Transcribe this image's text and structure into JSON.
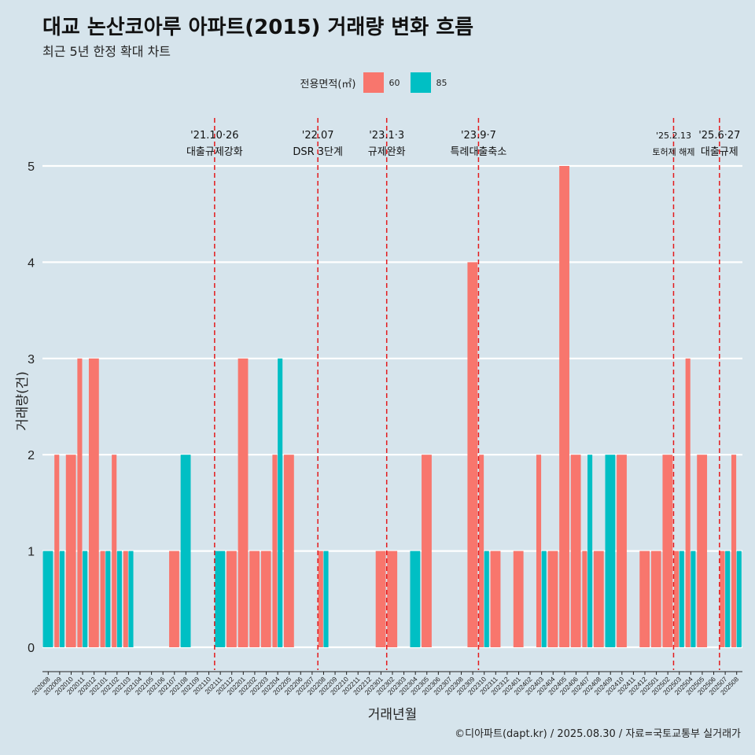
{
  "title": "대교 논산코아루 아파트(2015) 거래량 변화 흐름",
  "subtitle": "최근 5년 한정 확대 차트",
  "caption": "©디아파트(dapt.kr) / 2025.08.30 / 자료=국토교통부 실거래가",
  "colors": {
    "s60": "#f8766d",
    "s85": "#00bfc4",
    "event": "#e41a1c",
    "grid": "#ffffff",
    "background": "#d6e4ec"
  },
  "chart_data": {
    "type": "bar",
    "xlabel": "거래년월",
    "ylabel": "거래량(건)",
    "ylim": [
      0,
      5
    ],
    "yticks": [
      0,
      1,
      2,
      3,
      4,
      5
    ],
    "legend": {
      "title": "전용면적(㎡)",
      "position": "top"
    },
    "categories": [
      "202008",
      "202009",
      "202010",
      "202011",
      "202012",
      "202101",
      "202102",
      "202103",
      "202104",
      "202105",
      "202106",
      "202107",
      "202108",
      "202109",
      "202110",
      "202111",
      "202112",
      "202201",
      "202202",
      "202203",
      "202204",
      "202205",
      "202206",
      "202207",
      "202208",
      "202209",
      "202210",
      "202211",
      "202212",
      "202301",
      "202302",
      "202303",
      "202304",
      "202305",
      "202306",
      "202307",
      "202308",
      "202309",
      "202310",
      "202311",
      "202312",
      "202401",
      "202402",
      "202403",
      "202404",
      "202405",
      "202406",
      "202407",
      "202408",
      "202409",
      "202410",
      "202411",
      "202412",
      "202501",
      "202502",
      "202503",
      "202504",
      "202505",
      "202506",
      "202507",
      "202508"
    ],
    "series": [
      {
        "name": "60",
        "values": [
          0,
          2,
          2,
          3,
          3,
          1,
          2,
          1,
          0,
          0,
          0,
          1,
          0,
          0,
          0,
          0,
          1,
          3,
          1,
          1,
          2,
          2,
          0,
          0,
          1,
          0,
          0,
          0,
          0,
          1,
          1,
          0,
          0,
          2,
          0,
          0,
          0,
          4,
          2,
          1,
          0,
          1,
          0,
          2,
          1,
          5,
          2,
          1,
          1,
          0,
          2,
          0,
          1,
          1,
          2,
          1,
          3,
          2,
          0,
          1,
          2
        ]
      },
      {
        "name": "85",
        "values": [
          1,
          1,
          0,
          1,
          0,
          1,
          1,
          1,
          0,
          0,
          0,
          0,
          2,
          0,
          0,
          1,
          0,
          0,
          0,
          0,
          3,
          0,
          0,
          0,
          1,
          0,
          0,
          0,
          0,
          0,
          0,
          0,
          1,
          0,
          0,
          0,
          0,
          0,
          1,
          0,
          0,
          0,
          0,
          1,
          0,
          0,
          0,
          2,
          0,
          2,
          0,
          0,
          0,
          0,
          0,
          1,
          1,
          0,
          0,
          1,
          1
        ]
      }
    ],
    "events": [
      {
        "after": "202110",
        "date": "'21.10·26",
        "label": "대출규제강화"
      },
      {
        "after": "202207",
        "date": "'22.07",
        "label": "DSR 3단계"
      },
      {
        "after": "202301",
        "date": "'23.1·3",
        "label": "규제완화"
      },
      {
        "after": "202309",
        "date": "'23.9·7",
        "label": "특례대출축소"
      },
      {
        "after": "202502",
        "date": "'25.2.13",
        "label": "토허제 해제"
      },
      {
        "after": "202506",
        "date": "'25.6·27",
        "label": "대출규제"
      }
    ]
  }
}
